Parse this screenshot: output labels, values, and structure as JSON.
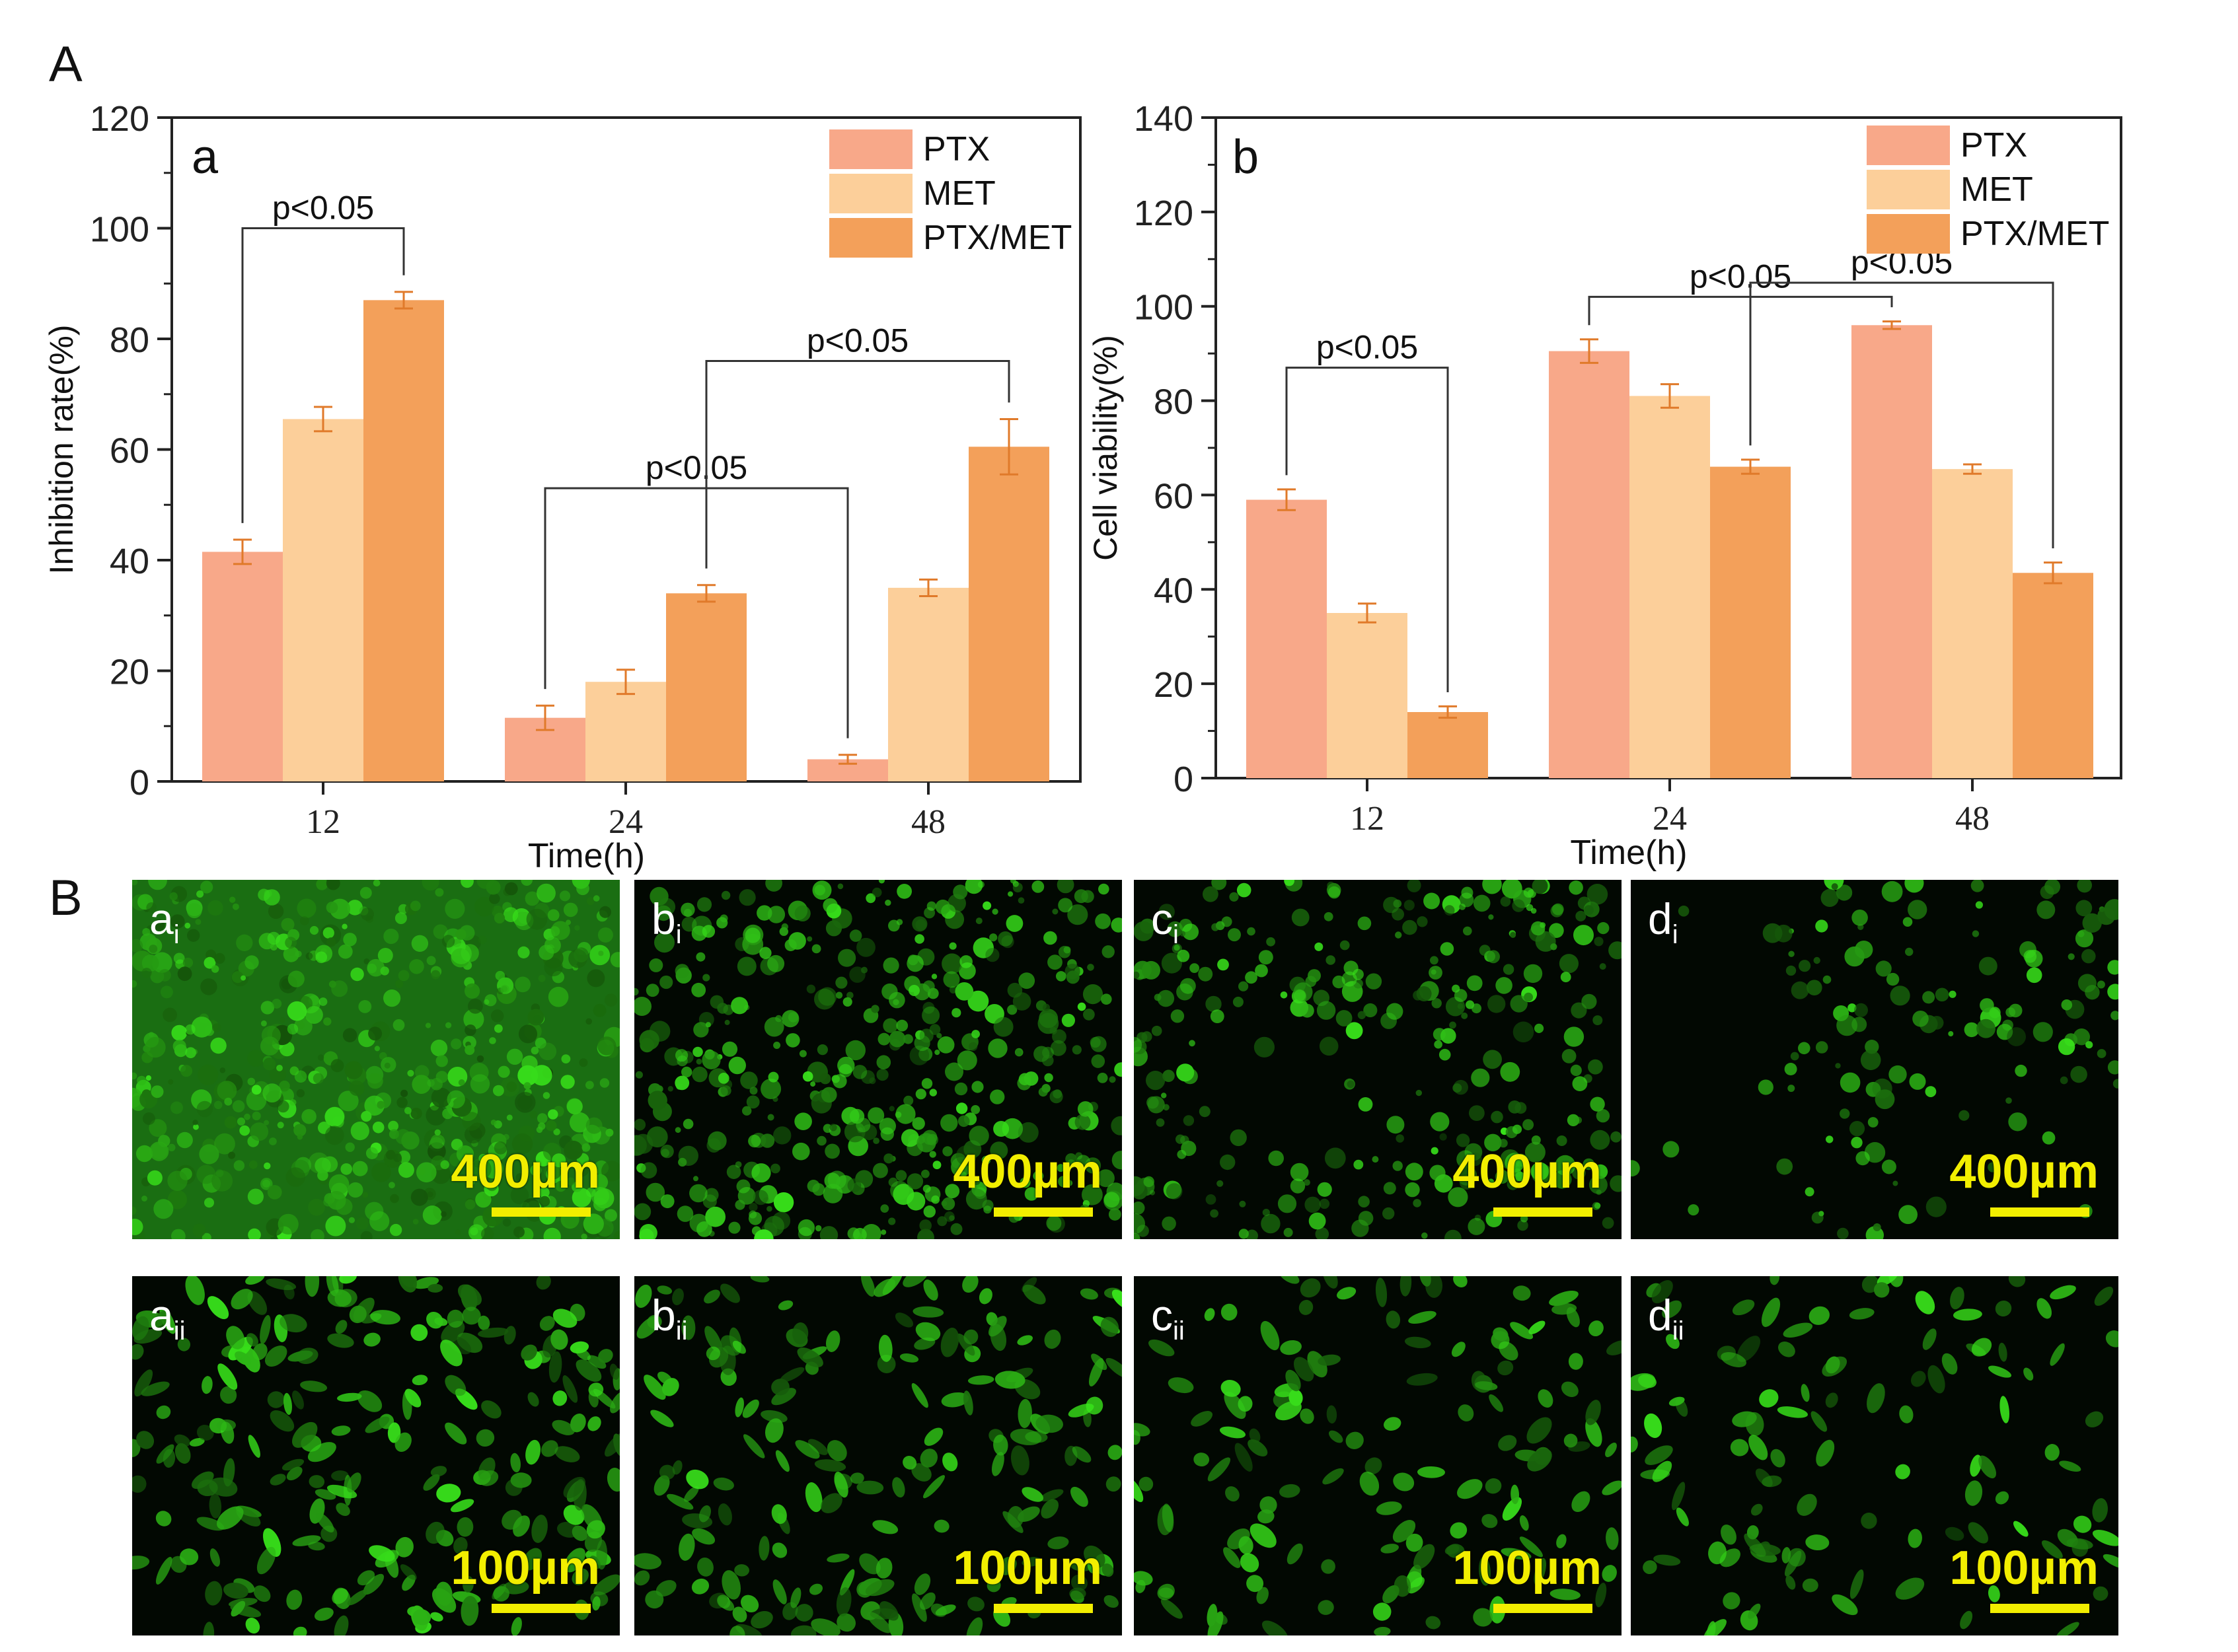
{
  "figure": {
    "panel_A": "A",
    "panel_B": "B"
  },
  "colors": {
    "PTX": "#f8a889",
    "MET": "#fccf9a",
    "PTX/MET": "#f3a05a"
  },
  "chart_data": [
    {
      "type": "bar",
      "panel": "a",
      "xlabel": "Time(h)",
      "ylabel": "Inhibition rate(%)",
      "ylim": [
        0,
        120
      ],
      "yticks": [
        0,
        20,
        40,
        60,
        80,
        100,
        120
      ],
      "categories": [
        "12",
        "24",
        "48"
      ],
      "series": [
        {
          "name": "PTX",
          "values": [
            41.5,
            11.5,
            4.0
          ],
          "errors": [
            2.2,
            2.2,
            0.8
          ]
        },
        {
          "name": "MET",
          "values": [
            65.5,
            18.0,
            35.0
          ],
          "errors": [
            2.2,
            2.2,
            1.5
          ]
        },
        {
          "name": "PTX/MET",
          "values": [
            87.0,
            34.0,
            60.5
          ],
          "errors": [
            1.5,
            1.5,
            5.0
          ]
        }
      ],
      "legend": [
        "PTX",
        "MET",
        "PTX/MET"
      ],
      "legend_position": "top-right",
      "significance": [
        {
          "from": [
            0,
            0
          ],
          "to": [
            0,
            2
          ],
          "label": "p<0.05",
          "level": 100
        },
        {
          "from": [
            1,
            0
          ],
          "to": [
            2,
            0
          ],
          "label": "p<0.05",
          "level": 53
        },
        {
          "from": [
            1,
            2
          ],
          "to": [
            2,
            2
          ],
          "label": "p<0.05",
          "level": 76
        }
      ]
    },
    {
      "type": "bar",
      "panel": "b",
      "xlabel": "Time(h)",
      "ylabel": "Cell viability(%)",
      "ylim": [
        0,
        140
      ],
      "yticks": [
        0,
        20,
        40,
        60,
        80,
        100,
        120,
        140
      ],
      "categories": [
        "12",
        "24",
        "48"
      ],
      "series": [
        {
          "name": "PTX",
          "values": [
            59.0,
            90.5,
            96.0
          ],
          "errors": [
            2.2,
            2.5,
            0.8
          ]
        },
        {
          "name": "MET",
          "values": [
            35.0,
            81.0,
            65.5
          ],
          "errors": [
            2.0,
            2.5,
            1.0
          ]
        },
        {
          "name": "PTX/MET",
          "values": [
            14.0,
            66.0,
            43.5
          ],
          "errors": [
            1.2,
            1.5,
            2.2
          ]
        }
      ],
      "legend": [
        "PTX",
        "MET",
        "PTX/MET"
      ],
      "legend_position": "top-right",
      "significance": [
        {
          "from": [
            0,
            0
          ],
          "to": [
            0,
            2
          ],
          "label": "p<0.05",
          "level": 87
        },
        {
          "from": [
            1,
            0
          ],
          "to": [
            2,
            0
          ],
          "label": "p<0.05",
          "level": 102
        },
        {
          "from": [
            1,
            2
          ],
          "to": [
            2,
            2
          ],
          "label": "p<0.05",
          "level": 105
        }
      ]
    }
  ],
  "micrographs": [
    {
      "label": "a",
      "sub": "i",
      "scale": "400µm",
      "density": 0.95,
      "style": "dense"
    },
    {
      "label": "b",
      "sub": "i",
      "scale": "400µm",
      "density": 0.72,
      "style": "speckle"
    },
    {
      "label": "c",
      "sub": "i",
      "scale": "400µm",
      "density": 0.58,
      "style": "patch"
    },
    {
      "label": "d",
      "sub": "i",
      "scale": "400µm",
      "density": 0.35,
      "style": "sparse"
    },
    {
      "label": "a",
      "sub": "ii",
      "scale": "100µm",
      "density": 0.92,
      "style": "cells"
    },
    {
      "label": "b",
      "sub": "ii",
      "scale": "100µm",
      "density": 0.75,
      "style": "cells"
    },
    {
      "label": "c",
      "sub": "ii",
      "scale": "100µm",
      "density": 0.55,
      "style": "cells"
    },
    {
      "label": "d",
      "sub": "ii",
      "scale": "100µm",
      "density": 0.45,
      "style": "cells"
    }
  ]
}
